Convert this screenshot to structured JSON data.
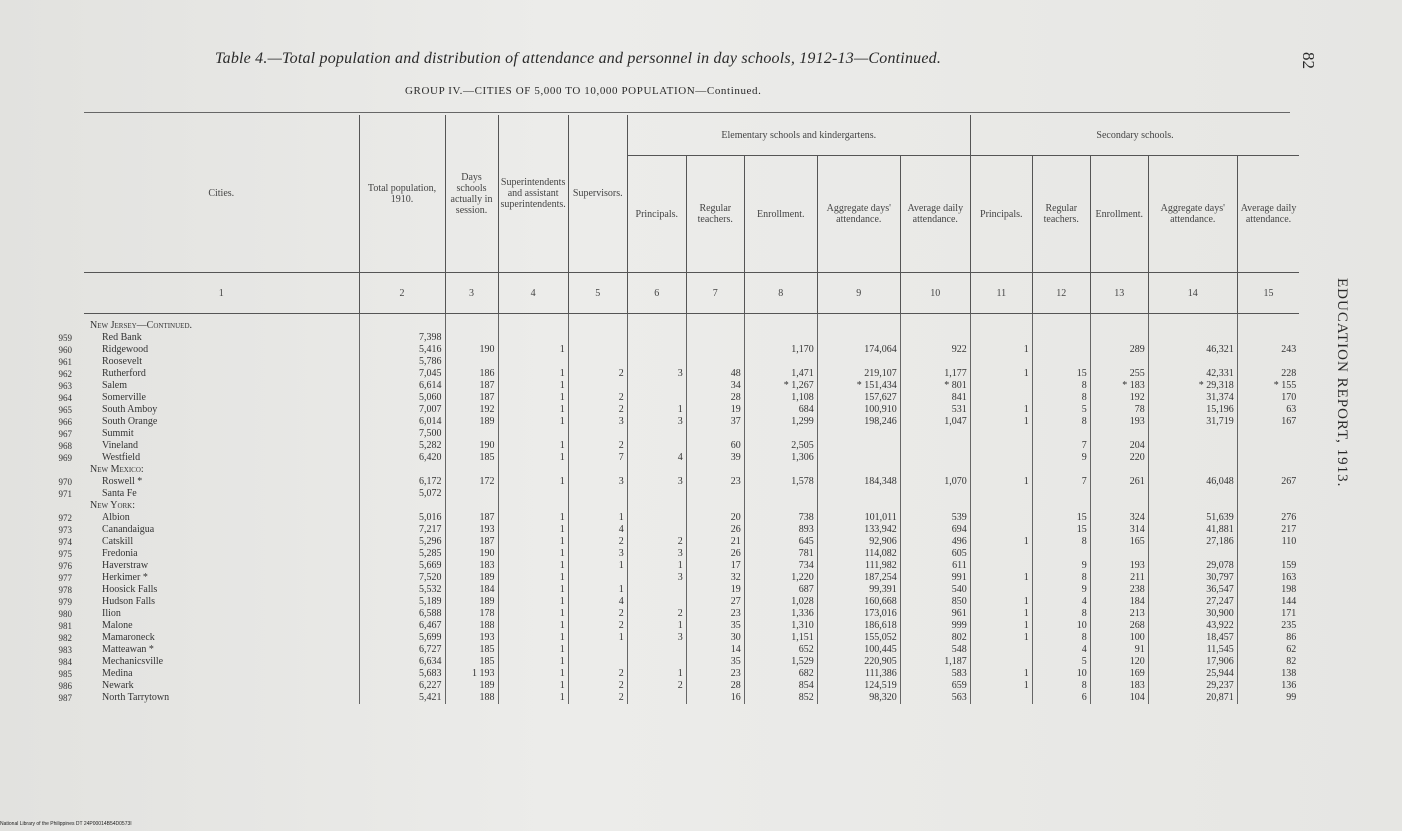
{
  "page": {
    "title": "Table 4.—Total population and distribution of attendance and personnel in day schools, 1912-13—Continued.",
    "subtitle": "GROUP IV.—CITIES OF 5,000 TO 10,000 POPULATION—Continued.",
    "page_number": "82",
    "running_head": "EDUCATION REPORT, 1913.",
    "footer": "National Library of the Philippines   DT 24P00014B54D0573I"
  },
  "table": {
    "group_headers": {
      "elementary": "Elementary schools and kindergartens.",
      "secondary": "Secondary schools."
    },
    "columns": [
      "Cities.",
      "Total population, 1910.",
      "Days schools actually in session.",
      "Superintendents and assistant superintendents.",
      "Supervisors.",
      "Principals.",
      "Regular teachers.",
      "Enrollment.",
      "Aggregate days' attendance.",
      "Average daily attendance.",
      "Principals.",
      "Regular teachers.",
      "Enrollment.",
      "Aggregate days' attendance.",
      "Average daily attendance."
    ],
    "numbers": [
      "1",
      "2",
      "3",
      "4",
      "5",
      "6",
      "7",
      "8",
      "9",
      "10",
      "11",
      "12",
      "13",
      "14",
      "15"
    ],
    "rows": [
      {
        "line": "",
        "state": "New Jersey—Continued.",
        "cells": []
      },
      {
        "line": "959",
        "cells": [
          "Red Bank",
          "7,398",
          "",
          "",
          "",
          "",
          "",
          "",
          "",
          "",
          "",
          "",
          "",
          "",
          ""
        ]
      },
      {
        "line": "960",
        "cells": [
          "Ridgewood",
          "5,416",
          "190",
          "1",
          "",
          "",
          "",
          "1,170",
          "174,064",
          "922",
          "1",
          "",
          "289",
          "46,321",
          "243"
        ]
      },
      {
        "line": "961",
        "cells": [
          "Roosevelt",
          "5,786",
          "",
          "",
          "",
          "",
          "",
          "",
          "",
          "",
          "",
          "",
          "",
          "",
          ""
        ]
      },
      {
        "line": "962",
        "cells": [
          "Rutherford",
          "7,045",
          "186",
          "1",
          "2",
          "3",
          "48",
          "1,471",
          "219,107",
          "1,177",
          "1",
          "15",
          "255",
          "42,331",
          "228"
        ]
      },
      {
        "line": "963",
        "cells": [
          "Salem",
          "6,614",
          "187",
          "1",
          "",
          "",
          "34",
          "* 1,267",
          "* 151,434",
          "* 801",
          "",
          "8",
          "* 183",
          "* 29,318",
          "* 155"
        ]
      },
      {
        "line": "964",
        "cells": [
          "Somerville",
          "5,060",
          "187",
          "1",
          "2",
          "",
          "28",
          "1,108",
          "157,627",
          "841",
          "",
          "8",
          "192",
          "31,374",
          "170"
        ]
      },
      {
        "line": "965",
        "cells": [
          "South Amboy",
          "7,007",
          "192",
          "1",
          "2",
          "1",
          "19",
          "684",
          "100,910",
          "531",
          "1",
          "5",
          "78",
          "15,196",
          "63"
        ]
      },
      {
        "line": "966",
        "cells": [
          "South Orange",
          "6,014",
          "189",
          "1",
          "3",
          "3",
          "37",
          "1,299",
          "198,246",
          "1,047",
          "1",
          "8",
          "193",
          "31,719",
          "167"
        ]
      },
      {
        "line": "967",
        "cells": [
          "Summit",
          "7,500",
          "",
          "",
          "",
          "",
          "",
          "",
          "",
          "",
          "",
          "",
          "",
          "",
          ""
        ]
      },
      {
        "line": "968",
        "cells": [
          "Vineland",
          "5,282",
          "190",
          "1",
          "2",
          "",
          "60",
          "2,505",
          "",
          "",
          "",
          "7",
          "204",
          "",
          ""
        ]
      },
      {
        "line": "969",
        "cells": [
          "Westfield",
          "6,420",
          "185",
          "1",
          "7",
          "4",
          "39",
          "1,306",
          "",
          "",
          "",
          "9",
          "220",
          "",
          ""
        ]
      },
      {
        "line": "",
        "state": "New Mexico:",
        "cells": []
      },
      {
        "line": "970",
        "cells": [
          "Roswell *",
          "6,172",
          "172",
          "1",
          "3",
          "3",
          "23",
          "1,578",
          "184,348",
          "1,070",
          "1",
          "7",
          "261",
          "46,048",
          "267"
        ]
      },
      {
        "line": "971",
        "cells": [
          "Santa Fe",
          "5,072",
          "",
          "",
          "",
          "",
          "",
          "",
          "",
          "",
          "",
          "",
          "",
          "",
          ""
        ]
      },
      {
        "line": "",
        "state": "New York:",
        "cells": []
      },
      {
        "line": "972",
        "cells": [
          "Albion",
          "5,016",
          "187",
          "1",
          "1",
          "",
          "20",
          "738",
          "101,011",
          "539",
          "",
          "15",
          "324",
          "51,639",
          "276"
        ]
      },
      {
        "line": "973",
        "cells": [
          "Canandaigua",
          "7,217",
          "193",
          "1",
          "4",
          "",
          "26",
          "893",
          "133,942",
          "694",
          "",
          "15",
          "314",
          "41,881",
          "217"
        ]
      },
      {
        "line": "974",
        "cells": [
          "Catskill",
          "5,296",
          "187",
          "1",
          "2",
          "2",
          "21",
          "645",
          "92,906",
          "496",
          "1",
          "8",
          "165",
          "27,186",
          "110"
        ]
      },
      {
        "line": "975",
        "cells": [
          "Fredonia",
          "5,285",
          "190",
          "1",
          "3",
          "3",
          "26",
          "781",
          "114,082",
          "605",
          "",
          "",
          "",
          "",
          ""
        ]
      },
      {
        "line": "976",
        "cells": [
          "Haverstraw",
          "5,669",
          "183",
          "1",
          "1",
          "1",
          "17",
          "734",
          "111,982",
          "611",
          "",
          "9",
          "193",
          "29,078",
          "159"
        ]
      },
      {
        "line": "977",
        "cells": [
          "Herkimer *",
          "7,520",
          "189",
          "1",
          "",
          "3",
          "32",
          "1,220",
          "187,254",
          "991",
          "1",
          "8",
          "211",
          "30,797",
          "163"
        ]
      },
      {
        "line": "978",
        "cells": [
          "Hoosick Falls",
          "5,532",
          "184",
          "1",
          "1",
          "",
          "19",
          "687",
          "99,391",
          "540",
          "",
          "9",
          "238",
          "36,547",
          "198"
        ]
      },
      {
        "line": "979",
        "cells": [
          "Hudson Falls",
          "5,189",
          "189",
          "1",
          "4",
          "",
          "27",
          "1,028",
          "160,668",
          "850",
          "1",
          "4",
          "184",
          "27,247",
          "144"
        ]
      },
      {
        "line": "980",
        "cells": [
          "Ilion",
          "6,588",
          "178",
          "1",
          "2",
          "2",
          "23",
          "1,336",
          "173,016",
          "961",
          "1",
          "8",
          "213",
          "30,900",
          "171"
        ]
      },
      {
        "line": "981",
        "cells": [
          "Malone",
          "6,467",
          "188",
          "1",
          "2",
          "1",
          "35",
          "1,310",
          "186,618",
          "999",
          "1",
          "10",
          "268",
          "43,922",
          "235"
        ]
      },
      {
        "line": "982",
        "cells": [
          "Mamaroneck",
          "5,699",
          "193",
          "1",
          "1",
          "3",
          "30",
          "1,151",
          "155,052",
          "802",
          "1",
          "8",
          "100",
          "18,457",
          "86"
        ]
      },
      {
        "line": "983",
        "cells": [
          "Matteawan *",
          "6,727",
          "185",
          "1",
          "",
          "",
          "14",
          "652",
          "100,445",
          "548",
          "",
          "4",
          "91",
          "11,545",
          "62"
        ]
      },
      {
        "line": "984",
        "cells": [
          "Mechanicsville",
          "6,634",
          "185",
          "1",
          "",
          "",
          "35",
          "1,529",
          "220,905",
          "1,187",
          "",
          "5",
          "120",
          "17,906",
          "82"
        ]
      },
      {
        "line": "985",
        "cells": [
          "Medina",
          "5,683",
          "1 193",
          "1",
          "2",
          "1",
          "23",
          "682",
          "111,386",
          "583",
          "1",
          "10",
          "169",
          "25,944",
          "138"
        ]
      },
      {
        "line": "986",
        "cells": [
          "Newark",
          "6,227",
          "189",
          "1",
          "2",
          "2",
          "28",
          "854",
          "124,519",
          "659",
          "1",
          "8",
          "183",
          "29,237",
          "136"
        ]
      },
      {
        "line": "987",
        "cells": [
          "North Tarrytown",
          "5,421",
          "188",
          "1",
          "2",
          "",
          "16",
          "852",
          "98,320",
          "563",
          "",
          "6",
          "104",
          "20,871",
          "99"
        ]
      }
    ]
  }
}
